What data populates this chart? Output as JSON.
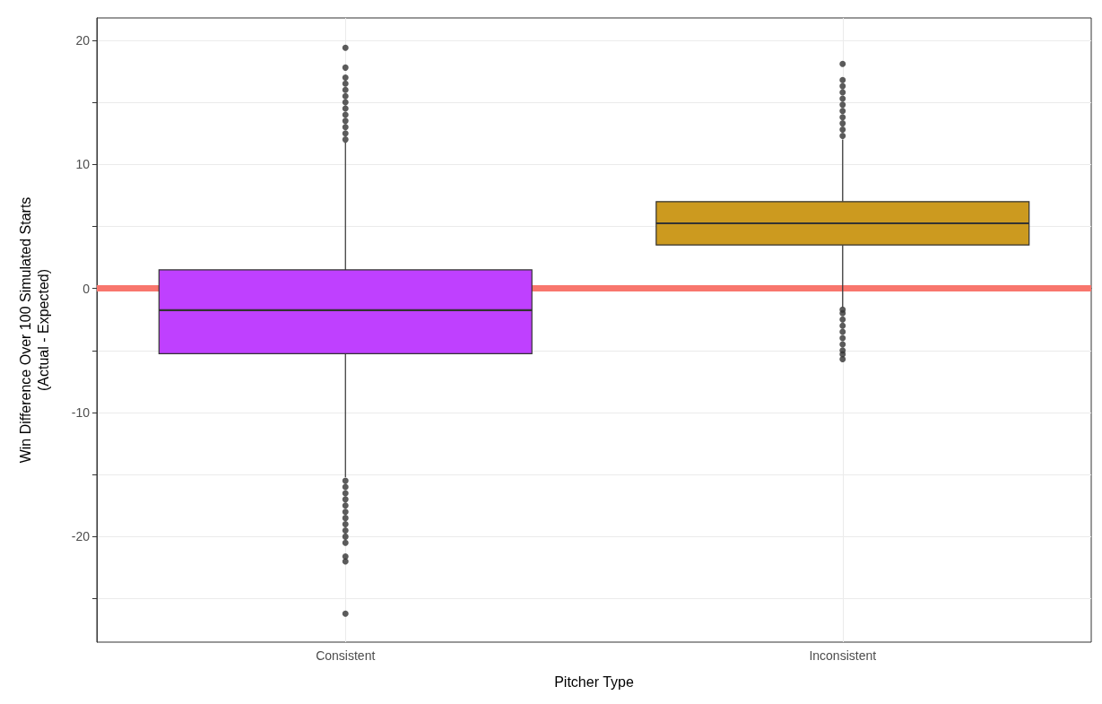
{
  "chart_data": {
    "type": "box",
    "xlabel": "Pitcher Type",
    "ylabel": "Win Difference Over 100 Simulated Starts\n(Actual - Expected)",
    "categories": [
      "Consistent",
      "Inconsistent"
    ],
    "boxes": [
      {
        "low": -15.2,
        "q1": -5.25,
        "median": -1.75,
        "q3": 1.5,
        "high": 11.75,
        "outliers": [
          12,
          12.5,
          13,
          13.5,
          14,
          14.5,
          15,
          15.5,
          16,
          16.5,
          17,
          17.8,
          19.4,
          -15.5,
          -16,
          -16.5,
          -17,
          -17.5,
          -18,
          -18.5,
          -19,
          -19.5,
          -20,
          -20.5,
          -21.6,
          -22,
          -26.2
        ]
      },
      {
        "low": -1.5,
        "q1": 3.5,
        "median": 5.25,
        "q3": 7,
        "high": 12,
        "outliers": [
          12.3,
          12.8,
          13.3,
          13.8,
          14.3,
          14.8,
          15.3,
          15.8,
          16.3,
          16.8,
          18.1,
          -1.7,
          -2,
          -2.5,
          -3,
          -3.5,
          -4,
          -4.5,
          -5,
          -5.3,
          -5.7
        ]
      }
    ],
    "colors": [
      "#bf40ff",
      "#cc9a1f"
    ],
    "ylim": [
      -28.5,
      21.8
    ],
    "yticks": [
      {
        "value": -25,
        "label": null
      },
      -20,
      {
        "value": -15,
        "label": null
      },
      -10,
      {
        "value": -5,
        "label": null
      },
      0,
      {
        "value": 5,
        "label": null
      },
      10,
      {
        "value": 15,
        "label": null
      },
      20
    ],
    "ref_lines": [
      {
        "axis": "y",
        "value": 0,
        "color": "#f8766d"
      }
    ],
    "grid": true
  }
}
